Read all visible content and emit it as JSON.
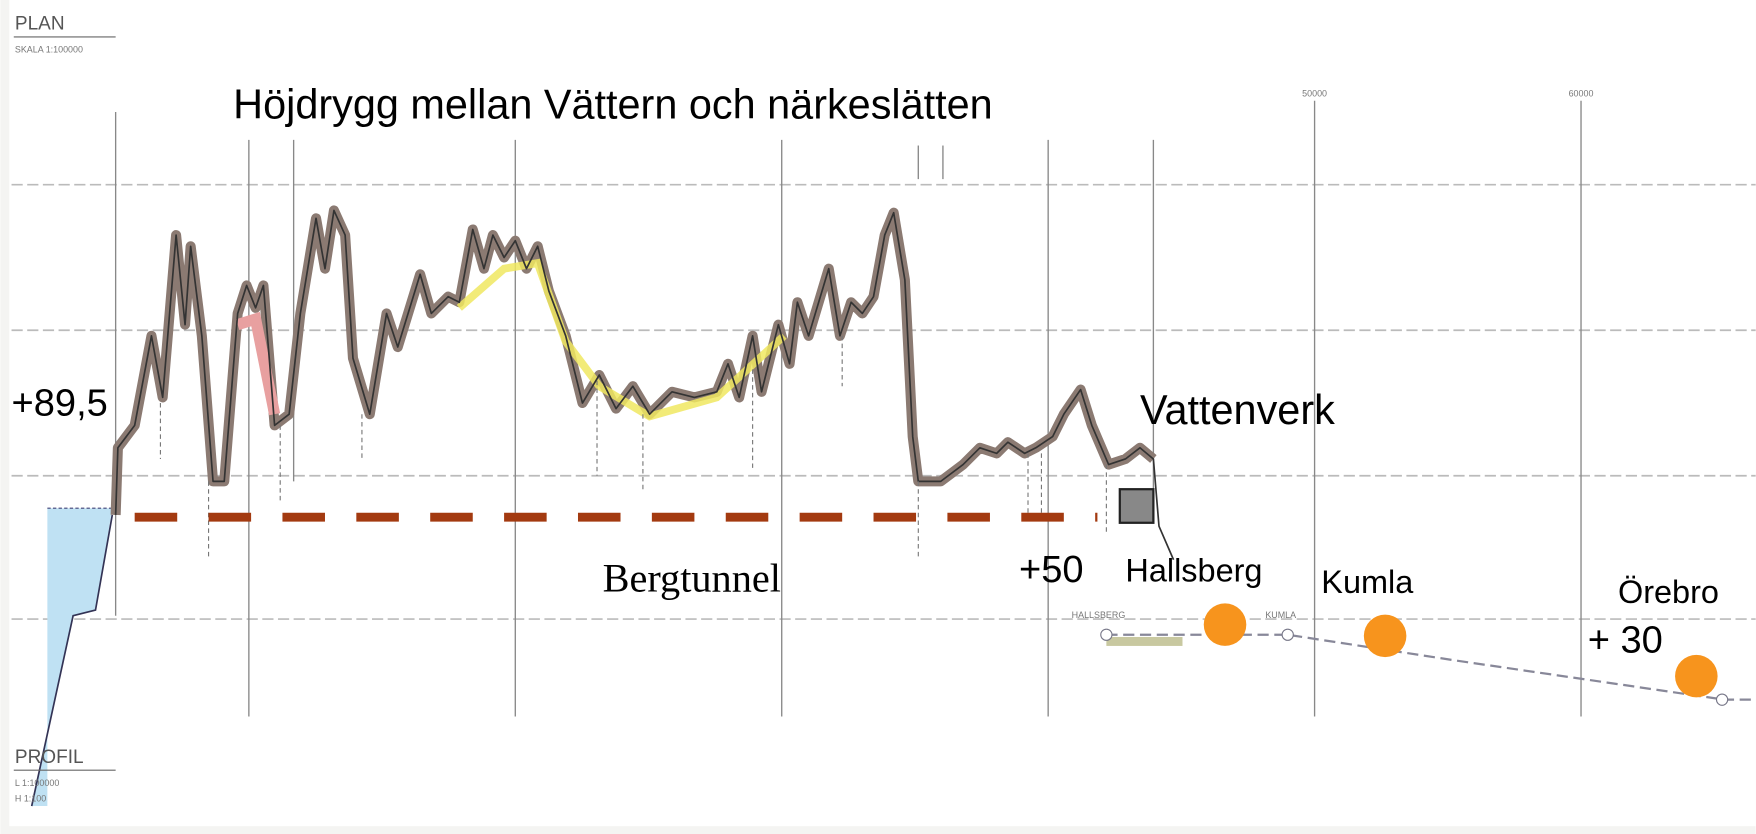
{
  "header": {
    "title": "PLAN",
    "scale": "SKALA 1:100000"
  },
  "headline": "Höjdrygg mellan Vättern och närkeslätten",
  "labels": {
    "start_level": "+89,5",
    "waterworks": "Vattenverk",
    "tunnel_end_level": "+50",
    "tunnel": "Bergtunnel",
    "end_level": "+ 30"
  },
  "places": [
    "Hallsberg",
    "Kumla",
    "Örebro"
  ],
  "map_marks": {
    "km_50": "50000",
    "km_60": "60000",
    "hallsberg": "HALLSBERG",
    "kumla": "KUMLA"
  },
  "footer": {
    "title": "PROFIL",
    "scale_l": "L 1:100000",
    "scale_h": "H 1:100"
  }
}
